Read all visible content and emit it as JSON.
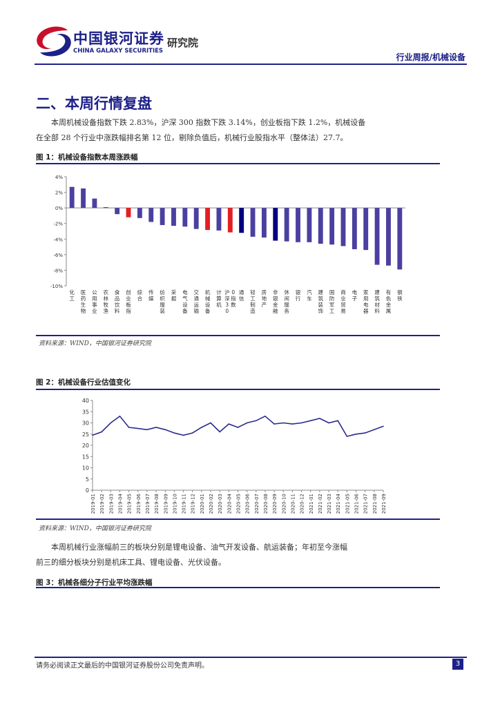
{
  "header": {
    "brand_cn": "中国银河证券",
    "brand_en": "CHINA GALAXY SECURITIES",
    "brand_inst": "研究院",
    "report_type": "行业周报/机械设备"
  },
  "section": {
    "title": "二、本周行情复盘",
    "para1_lines": [
      "本周机械设备指数下跌 2.83%，沪深 300 指数下跌 3.14%，创业板指下跌 1.2%，机械设备",
      "在全部 28 个行业中涨跌幅排名第 12 位，剔除负值后，机械行业股指水平（整体法）27.7。"
    ],
    "para2_lines": [
      "本周机械行业涨幅前三的板块分别是锂电设备、油气开发设备、航运装备；年初至今涨幅",
      "前三的细分板块分别是机床工具、锂电设备、光伏设备。"
    ]
  },
  "figures": {
    "fig1_title": "图 1：机械设备指数本周涨跌幅",
    "fig1_source": "资料来源：WIND，中国银河证券研究院",
    "fig2_title": "图 2：机械设备行业估值变化",
    "fig2_source": "资料来源：WIND，中国银河证券研究院",
    "fig3_title": "图 3：机械各细分子行业平均涨跌幅"
  },
  "chart_data": [
    {
      "type": "bar",
      "ylim": [
        -10,
        4
      ],
      "yticks": [
        "4%",
        "2%",
        "0%",
        "-2%",
        "-4%",
        "-6%",
        "-8%",
        "-10%"
      ],
      "grid": false,
      "legend": "none",
      "categories": [
        "化工",
        "医药生物",
        "公用事业",
        "农林牧渔",
        "食品饮料",
        "创业板指",
        "综合",
        "传媒",
        "纺织服装",
        "采掘",
        "电气设备",
        "交通运输",
        "机械设备",
        "计算机",
        "沪深300指数",
        "通信",
        "轻工制造",
        "房地产",
        "非银金融",
        "休闲服务",
        "银行",
        "汽车",
        "建筑装饰",
        "国防军工",
        "商业贸易",
        "电子",
        "家用电器",
        "建筑材料",
        "有色金属",
        "钢铁"
      ],
      "values": [
        2.7,
        2.5,
        1.2,
        0.1,
        -0.8,
        -1.2,
        -1.3,
        -1.8,
        -2.2,
        -2.3,
        -2.4,
        -2.7,
        -2.83,
        -2.9,
        -3.14,
        -3.2,
        -3.7,
        -3.8,
        -4.2,
        -4.3,
        -4.4,
        -4.4,
        -4.6,
        -4.7,
        -4.9,
        -5.3,
        -5.4,
        -7.3,
        -7.4,
        -7.9
      ],
      "highlights": {
        "机械设备": "#e31e24",
        "创业板指": "#e31e24",
        "沪深300指数": "#e31e24",
        "通信": "#00007f",
        "非银金融": "#00007f"
      },
      "default_color": "#4b40a0"
    },
    {
      "type": "line",
      "ylim": [
        0,
        40
      ],
      "yticks": [
        0,
        5,
        10,
        15,
        20,
        25,
        30,
        35,
        40
      ],
      "grid": false,
      "legend": "none",
      "x": [
        "2019-01",
        "2019-02",
        "2019-03",
        "2019-04",
        "2019-05",
        "2019-06",
        "2019-07",
        "2019-08",
        "2019-09",
        "2019-10",
        "2019-11",
        "2019-12",
        "2020-01",
        "2020-02",
        "2020-03",
        "2020-04",
        "2020-05",
        "2020-06",
        "2020-07",
        "2020-08",
        "2020-09",
        "2020-10",
        "2020-11",
        "2020-12",
        "2021-01",
        "2021-02",
        "2021-03",
        "2021-04",
        "2021-05",
        "2021-06",
        "2021-07",
        "2021-08",
        "2021-09"
      ],
      "values": [
        24.5,
        26,
        30,
        33,
        28,
        27.5,
        27,
        28,
        27,
        25.5,
        24.5,
        25.5,
        28,
        30,
        26,
        29.5,
        28,
        30,
        31,
        33,
        29.5,
        30,
        29.5,
        30,
        31,
        32,
        30,
        31,
        24,
        25,
        25.5,
        27,
        28.5
      ],
      "color": "#2b2b8c"
    }
  ],
  "footer": {
    "disclaimer": "请务必阅读正文最后的中国银河证券股份公司免责声明。",
    "page_number": "3"
  }
}
